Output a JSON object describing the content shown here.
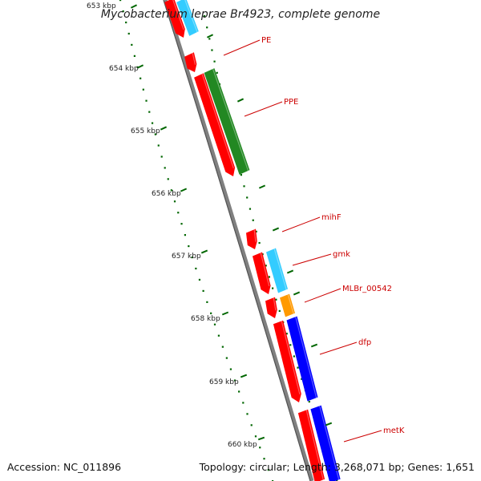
{
  "title": "Mycobacterium leprae Br4923, complete genome",
  "footer": {
    "accession": "Accession: NC_011896",
    "summary": "Topology: circular; Length: 3,268,071 bp; Genes: 1,651"
  },
  "ticks": [
    "653 kbp",
    "654 kbp",
    "655 kbp",
    "656 kbp",
    "657 kbp",
    "658 kbp",
    "659 kbp",
    "660 kbp"
  ],
  "genes": [
    {
      "name": "PE"
    },
    {
      "name": "PPE"
    },
    {
      "name": "mihF"
    },
    {
      "name": "gmk"
    },
    {
      "name": "MLBr_00542"
    },
    {
      "name": "dfp"
    },
    {
      "name": "metK"
    }
  ],
  "colors": {
    "red_track": "#ff0000",
    "cyan_track": "#33ccff",
    "green_track": "#228822",
    "orange_track": "#ff9900",
    "blue_track": "#0000ff",
    "backbone": "#808080",
    "tick_mark": "#006600",
    "label_text": "#cc0000"
  }
}
